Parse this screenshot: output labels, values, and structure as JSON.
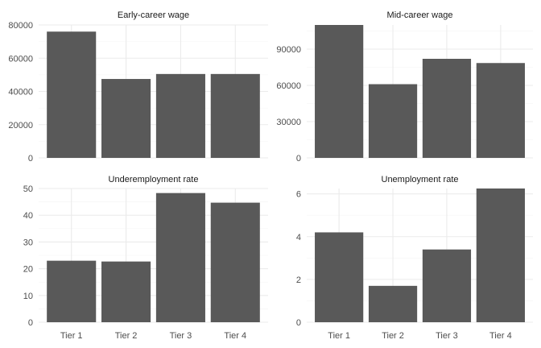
{
  "chart_data": [
    {
      "type": "bar",
      "title": "Early-career wage",
      "categories": [
        "Tier 1",
        "Tier 2",
        "Tier 3",
        "Tier 4"
      ],
      "values": [
        76000,
        47500,
        50500,
        50500
      ],
      "ylim": [
        0,
        80000
      ],
      "yticks": [
        0,
        20000,
        40000,
        60000,
        80000
      ],
      "ytick_labels": [
        "0",
        "20000",
        "40000",
        "60000",
        "80000"
      ],
      "xlabel": "",
      "ylabel": ""
    },
    {
      "type": "bar",
      "title": "Mid-career wage",
      "categories": [
        "Tier 1",
        "Tier 2",
        "Tier 3",
        "Tier 4"
      ],
      "values": [
        110000,
        61000,
        82000,
        78500
      ],
      "ylim": [
        0,
        110000
      ],
      "yticks": [
        0,
        30000,
        60000,
        90000
      ],
      "ytick_labels": [
        "0",
        "30000",
        "60000",
        "90000"
      ],
      "xlabel": "",
      "ylabel": ""
    },
    {
      "type": "bar",
      "title": "Underemployment rate",
      "categories": [
        "Tier 1",
        "Tier 2",
        "Tier 3",
        "Tier 4"
      ],
      "values": [
        23,
        22.7,
        48.3,
        44.7
      ],
      "ylim": [
        0,
        50
      ],
      "yticks": [
        0,
        10,
        20,
        30,
        40,
        50
      ],
      "ytick_labels": [
        "0",
        "10",
        "20",
        "30",
        "40",
        "50"
      ],
      "xlabel": "",
      "ylabel": ""
    },
    {
      "type": "bar",
      "title": "Unemployment rate",
      "categories": [
        "Tier 1",
        "Tier 2",
        "Tier 3",
        "Tier 4"
      ],
      "values": [
        4.2,
        1.7,
        3.4,
        6.25
      ],
      "ylim": [
        0,
        6.25
      ],
      "yticks": [
        0,
        2,
        4,
        6
      ],
      "ytick_labels": [
        "0",
        "2",
        "4",
        "6"
      ],
      "xlabel": "",
      "ylabel": ""
    }
  ],
  "style": {
    "bar_color": "#595959",
    "grid_color": "#ebebeb",
    "background": "#ffffff",
    "theme": "minimal",
    "grid": true,
    "legend": "none"
  }
}
